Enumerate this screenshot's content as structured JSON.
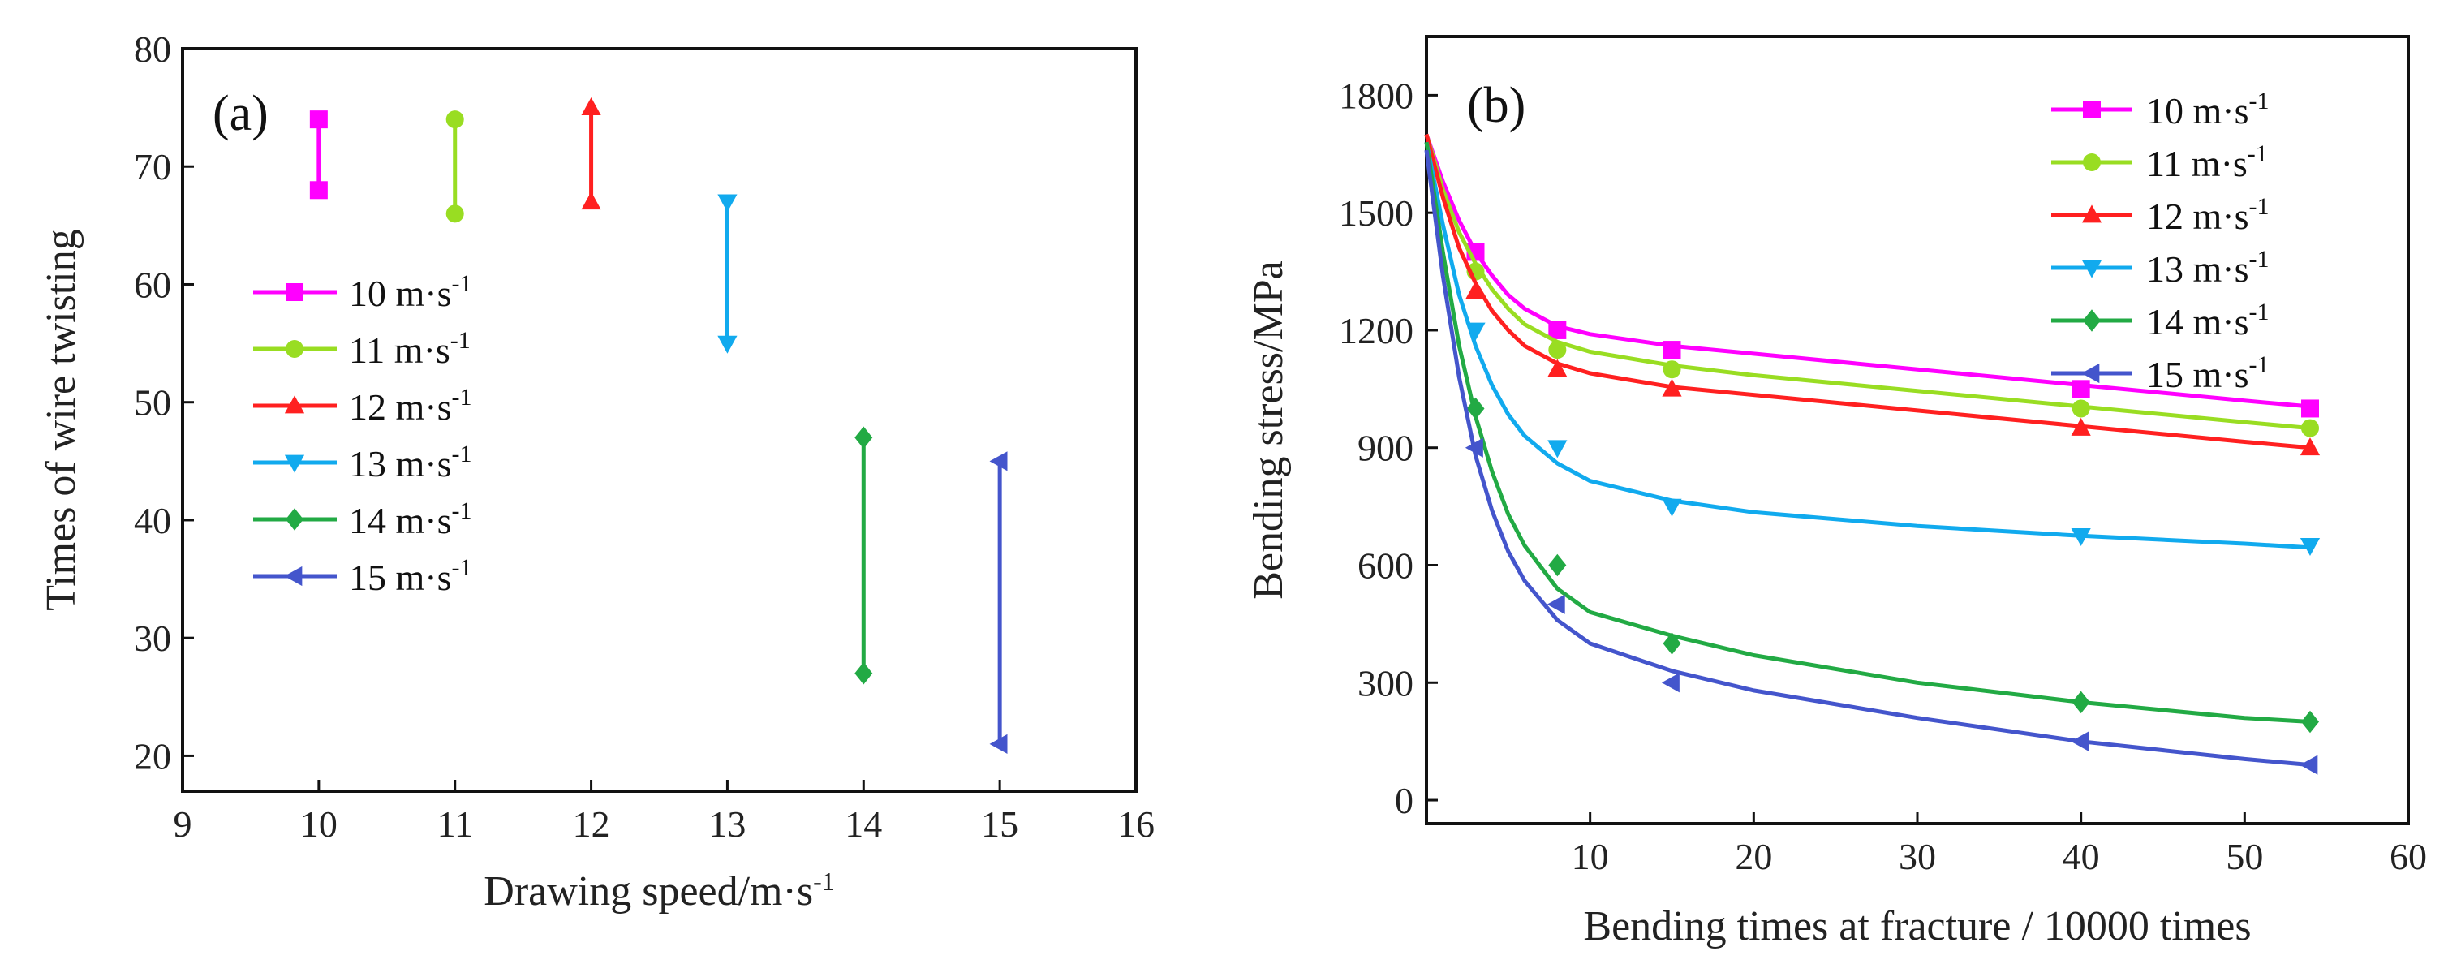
{
  "figure": {
    "panels": [
      "(a)",
      "(b)"
    ]
  },
  "chart_data": [
    {
      "type": "range",
      "panel": "(a)",
      "xlabel": "Drawing speed/m·s",
      "xlabel_sup": "-1",
      "ylabel": "Times of wire twisting",
      "xlim": [
        9,
        16
      ],
      "ylim": [
        17,
        80
      ],
      "xticks": [
        9,
        10,
        11,
        12,
        13,
        14,
        15,
        16
      ],
      "yticks": [
        20,
        30,
        40,
        50,
        60,
        70,
        80
      ],
      "series": [
        {
          "name": "10 m·s",
          "sup": "-1",
          "color": "#ff00ff",
          "marker": "square",
          "x": 10,
          "low": 68,
          "high": 74
        },
        {
          "name": "11 m·s",
          "sup": "-1",
          "color": "#99dd22",
          "marker": "circle",
          "x": 11,
          "low": 66,
          "high": 74
        },
        {
          "name": "12 m·s",
          "sup": "-1",
          "color": "#ff2020",
          "marker": "triangle-up",
          "x": 12,
          "low": 67,
          "high": 75
        },
        {
          "name": "13 m·s",
          "sup": "-1",
          "color": "#11aaee",
          "marker": "triangle-down",
          "x": 13,
          "low": 55,
          "high": 67
        },
        {
          "name": "14 m·s",
          "sup": "-1",
          "color": "#22aa44",
          "marker": "diamond",
          "x": 14,
          "low": 27,
          "high": 47
        },
        {
          "name": "15 m·s",
          "sup": "-1",
          "color": "#4455cc",
          "marker": "triangle-left",
          "x": 15,
          "low": 21,
          "high": 45
        }
      ]
    },
    {
      "type": "line",
      "panel": "(b)",
      "xlabel": "Bending times at fracture / 10000 times",
      "ylabel": "Bending stress/MPa",
      "xlim": [
        0,
        60
      ],
      "ylim": [
        -60,
        1950
      ],
      "xticks": [
        10,
        20,
        30,
        40,
        50,
        60
      ],
      "yticks": [
        0,
        300,
        600,
        900,
        1200,
        1500,
        1800
      ],
      "series": [
        {
          "name": "10 m·s",
          "sup": "-1",
          "color": "#ff00ff",
          "marker": "square",
          "x": [
            3,
            8,
            15,
            40,
            54
          ],
          "y": [
            1400,
            1200,
            1150,
            1050,
            1000
          ],
          "fit": [
            [
              0,
              1700
            ],
            [
              1,
              1580
            ],
            [
              2,
              1480
            ],
            [
              3,
              1400
            ],
            [
              4,
              1340
            ],
            [
              5,
              1290
            ],
            [
              6,
              1255
            ],
            [
              8,
              1210
            ],
            [
              10,
              1190
            ],
            [
              15,
              1160
            ],
            [
              20,
              1140
            ],
            [
              30,
              1100
            ],
            [
              40,
              1060
            ],
            [
              50,
              1020
            ],
            [
              54,
              1005
            ]
          ]
        },
        {
          "name": "11 m·s",
          "sup": "-1",
          "color": "#99dd22",
          "marker": "circle",
          "x": [
            3,
            8,
            15,
            40,
            54
          ],
          "y": [
            1350,
            1150,
            1100,
            1000,
            950
          ],
          "fit": [
            [
              0,
              1700
            ],
            [
              1,
              1560
            ],
            [
              2,
              1450
            ],
            [
              3,
              1370
            ],
            [
              4,
              1305
            ],
            [
              5,
              1255
            ],
            [
              6,
              1215
            ],
            [
              8,
              1170
            ],
            [
              10,
              1145
            ],
            [
              15,
              1110
            ],
            [
              20,
              1085
            ],
            [
              30,
              1045
            ],
            [
              40,
              1005
            ],
            [
              50,
              965
            ],
            [
              54,
              950
            ]
          ]
        },
        {
          "name": "12 m·s",
          "sup": "-1",
          "color": "#ff2020",
          "marker": "triangle-up",
          "x": [
            3,
            8,
            15,
            40,
            54
          ],
          "y": [
            1300,
            1100,
            1050,
            950,
            900
          ],
          "fit": [
            [
              0,
              1700
            ],
            [
              1,
              1540
            ],
            [
              2,
              1410
            ],
            [
              3,
              1320
            ],
            [
              4,
              1250
            ],
            [
              5,
              1200
            ],
            [
              6,
              1160
            ],
            [
              8,
              1115
            ],
            [
              10,
              1090
            ],
            [
              15,
              1055
            ],
            [
              20,
              1035
            ],
            [
              30,
              995
            ],
            [
              40,
              955
            ],
            [
              50,
              915
            ],
            [
              54,
              900
            ]
          ]
        },
        {
          "name": "13 m·s",
          "sup": "-1",
          "color": "#11aaee",
          "marker": "triangle-down",
          "x": [
            3,
            8,
            15,
            40,
            54
          ],
          "y": [
            1200,
            900,
            750,
            675,
            650
          ],
          "fit": [
            [
              0,
              1680
            ],
            [
              1,
              1470
            ],
            [
              2,
              1290
            ],
            [
              3,
              1160
            ],
            [
              4,
              1060
            ],
            [
              5,
              985
            ],
            [
              6,
              930
            ],
            [
              8,
              860
            ],
            [
              10,
              815
            ],
            [
              15,
              765
            ],
            [
              20,
              735
            ],
            [
              30,
              700
            ],
            [
              40,
              675
            ],
            [
              50,
              655
            ],
            [
              54,
              645
            ]
          ]
        },
        {
          "name": "14 m·s",
          "sup": "-1",
          "color": "#22aa44",
          "marker": "diamond",
          "x": [
            3,
            8,
            15,
            40,
            54
          ],
          "y": [
            1000,
            600,
            400,
            250,
            200
          ],
          "fit": [
            [
              0,
              1680
            ],
            [
              1,
              1400
            ],
            [
              2,
              1160
            ],
            [
              3,
              980
            ],
            [
              4,
              840
            ],
            [
              5,
              730
            ],
            [
              6,
              650
            ],
            [
              8,
              540
            ],
            [
              10,
              480
            ],
            [
              15,
              420
            ],
            [
              20,
              370
            ],
            [
              30,
              300
            ],
            [
              40,
              250
            ],
            [
              50,
              210
            ],
            [
              54,
              200
            ]
          ]
        },
        {
          "name": "15 m·s",
          "sup": "-1",
          "color": "#4455cc",
          "marker": "triangle-left",
          "x": [
            3,
            8,
            15,
            40,
            54
          ],
          "y": [
            900,
            500,
            300,
            150,
            90
          ],
          "fit": [
            [
              0,
              1660
            ],
            [
              1,
              1340
            ],
            [
              2,
              1080
            ],
            [
              3,
              880
            ],
            [
              4,
              740
            ],
            [
              5,
              635
            ],
            [
              6,
              560
            ],
            [
              8,
              460
            ],
            [
              10,
              400
            ],
            [
              15,
              330
            ],
            [
              20,
              280
            ],
            [
              30,
              210
            ],
            [
              40,
              150
            ],
            [
              50,
              105
            ],
            [
              54,
              90
            ]
          ]
        }
      ]
    }
  ]
}
